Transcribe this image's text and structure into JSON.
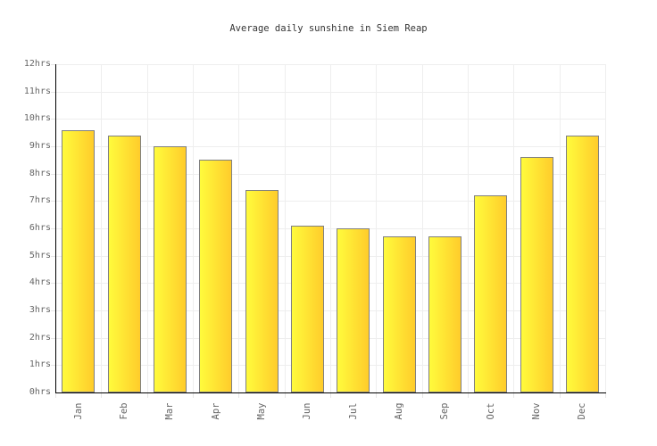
{
  "title": "Average daily sunshine in Siem Reap",
  "chart_data": {
    "type": "bar",
    "title": "Average daily sunshine in Siem Reap",
    "categories": [
      "Jan",
      "Feb",
      "Mar",
      "Apr",
      "May",
      "Jun",
      "Jul",
      "Aug",
      "Sep",
      "Oct",
      "Nov",
      "Dec"
    ],
    "values": [
      9.6,
      9.4,
      9.0,
      8.5,
      7.4,
      6.1,
      6.0,
      5.7,
      5.7,
      7.2,
      8.6,
      9.4
    ],
    "xlabel": "",
    "ylabel": "",
    "ylim": [
      0,
      12
    ],
    "y_tick_step": 1,
    "y_tick_labels": [
      "0hrs",
      "1hrs",
      "2hrs",
      "3hrs",
      "4hrs",
      "5hrs",
      "6hrs",
      "7hrs",
      "8hrs",
      "9hrs",
      "10hrs",
      "11hrs",
      "12hrs"
    ],
    "grid": true,
    "legend": false,
    "unit": "hrs"
  },
  "colors": {
    "bar_gradient_start": "#fffb3c",
    "bar_gradient_end": "#ffcc2b",
    "bar_border": "#808080",
    "gridline": "#eeeeee",
    "axis": "#000000",
    "tick_label": "#666666",
    "title_text": "#333333",
    "background": "#ffffff"
  }
}
